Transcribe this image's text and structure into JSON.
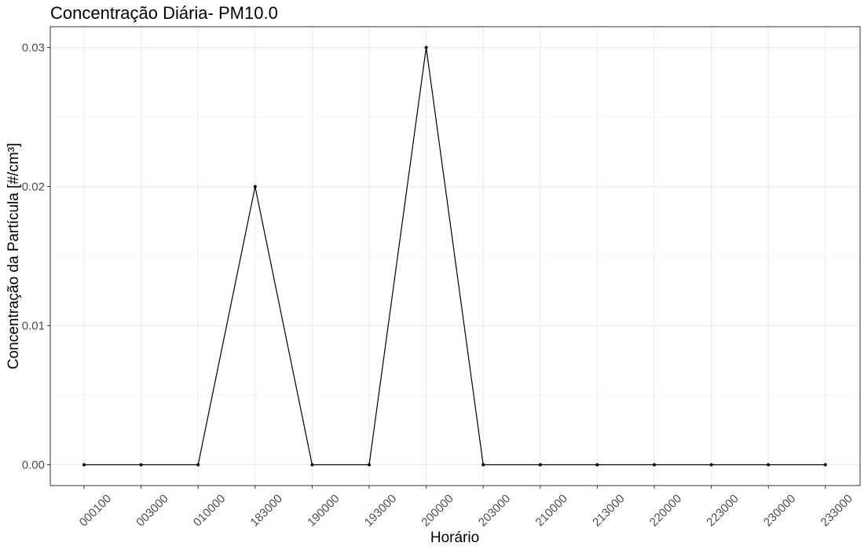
{
  "chart_data": {
    "type": "line",
    "title": "Concentração Diária- PM10.0",
    "xlabel": "Horário",
    "ylabel": "Concentração da Partícula [#/cm³]",
    "categories": [
      "000100",
      "003000",
      "010000",
      "183000",
      "190000",
      "193000",
      "200000",
      "203000",
      "210000",
      "213000",
      "220000",
      "223000",
      "230000",
      "233000"
    ],
    "values": [
      0,
      0,
      0,
      0.02,
      0,
      0,
      0.03,
      0,
      0,
      0,
      0,
      0,
      0,
      0
    ],
    "y_ticks": [
      {
        "value": 0.0,
        "label": "0.00"
      },
      {
        "value": 0.01,
        "label": "0.01"
      },
      {
        "value": 0.02,
        "label": "0.02"
      },
      {
        "value": 0.03,
        "label": "0.03"
      }
    ],
    "ylim": [
      -0.0015,
      0.0315
    ],
    "grid": true,
    "line_color": "#000000",
    "point_color": "#000000",
    "x_tick_rotation": "45deg"
  }
}
